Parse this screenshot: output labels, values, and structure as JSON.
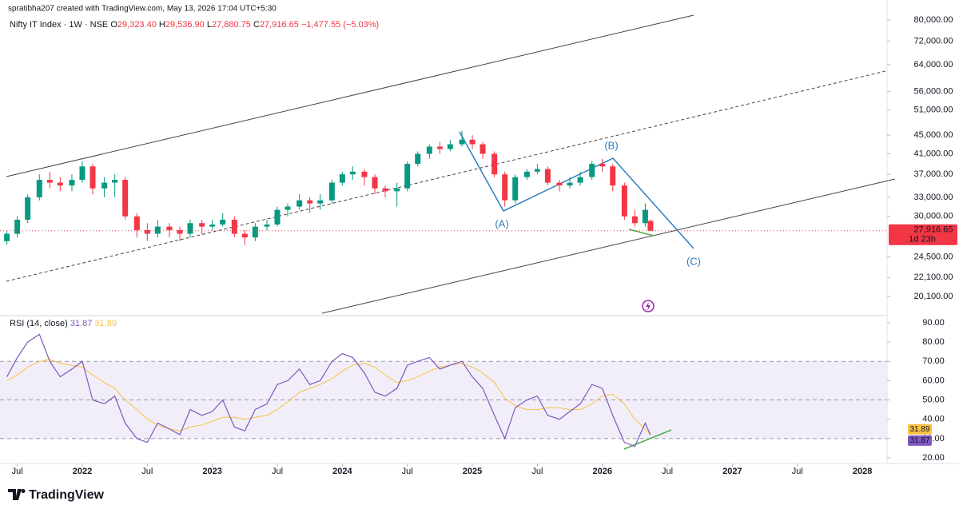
{
  "header": {
    "credit": "spratibha207 created with TradingView.com, May 13, 2026 17:04 UTC+5:30",
    "symbol": "Nifty IT Index · 1W · NSE",
    "ohlc": [
      {
        "prefix": "O",
        "label": "29,323.40"
      },
      {
        "prefix": "H",
        "label": "29,536.90"
      },
      {
        "prefix": "L",
        "label": "27,880.75"
      },
      {
        "prefix": "C",
        "label": "27,916.65"
      }
    ],
    "change": "−1,477.55 (−5.03%)"
  },
  "footer": {
    "brand": "TradingView"
  },
  "chart_data": [
    {
      "type": "candlestick",
      "log_scale": true,
      "grid": false,
      "up_color": "#089981",
      "down_color": "#f23645",
      "x": [
        2021.42,
        2021.5,
        2021.58,
        2021.67,
        2021.75,
        2021.83,
        2021.92,
        2022.0,
        2022.08,
        2022.17,
        2022.25,
        2022.33,
        2022.42,
        2022.5,
        2022.58,
        2022.67,
        2022.75,
        2022.83,
        2022.92,
        2023.0,
        2023.08,
        2023.17,
        2023.25,
        2023.33,
        2023.42,
        2023.5,
        2023.58,
        2023.67,
        2023.75,
        2023.83,
        2023.92,
        2024.0,
        2024.08,
        2024.17,
        2024.25,
        2024.33,
        2024.42,
        2024.5,
        2024.58,
        2024.67,
        2024.75,
        2024.83,
        2024.92,
        2025.0,
        2025.08,
        2025.17,
        2025.25,
        2025.33,
        2025.42,
        2025.5,
        2025.58,
        2025.67,
        2025.75,
        2025.83,
        2025.92,
        2026.0,
        2026.08,
        2026.17,
        2026.25,
        2026.33,
        2026.37
      ],
      "open": [
        26500,
        27500,
        29500,
        33000,
        36000,
        35500,
        35000,
        36000,
        38500,
        34500,
        35500,
        36000,
        30000,
        28000,
        27500,
        28500,
        28000,
        27500,
        29000,
        28500,
        28800,
        29500,
        27500,
        27000,
        28500,
        28800,
        31000,
        31500,
        32500,
        32000,
        32500,
        35500,
        37000,
        37500,
        36500,
        34500,
        34000,
        34500,
        39000,
        41000,
        42500,
        42000,
        43000,
        44000,
        43000,
        41000,
        37000,
        32500,
        36500,
        37500,
        38000,
        35500,
        35000,
        35500,
        36500,
        39000,
        38500,
        35000,
        30000,
        29000,
        29323.4
      ],
      "high": [
        28000,
        30000,
        33500,
        37000,
        37500,
        36500,
        37000,
        39500,
        39000,
        36500,
        37000,
        36500,
        30500,
        29000,
        29500,
        29000,
        28500,
        29500,
        29500,
        29500,
        30500,
        30000,
        28000,
        29000,
        29500,
        31500,
        32000,
        33500,
        33000,
        33500,
        36000,
        37500,
        38500,
        38000,
        37000,
        35000,
        35500,
        39500,
        41500,
        43000,
        43500,
        44000,
        46000,
        45000,
        43500,
        41500,
        37500,
        37000,
        38000,
        39000,
        38500,
        36000,
        36500,
        37500,
        39500,
        40000,
        39000,
        35500,
        31000,
        32000,
        29536.9
      ],
      "low": [
        26000,
        27000,
        29000,
        32500,
        34500,
        34000,
        34000,
        35500,
        33500,
        33000,
        33000,
        29500,
        27000,
        26500,
        27000,
        27000,
        26500,
        27000,
        27500,
        28000,
        28500,
        27000,
        26000,
        26500,
        28000,
        28500,
        30000,
        31000,
        30500,
        31000,
        32000,
        35000,
        36000,
        35000,
        33500,
        33000,
        31500,
        34000,
        38500,
        40000,
        41000,
        41500,
        42500,
        42000,
        40000,
        36500,
        31500,
        32000,
        36000,
        37000,
        35000,
        34000,
        34500,
        35000,
        36000,
        37500,
        34000,
        29500,
        28500,
        28500,
        27880.75
      ],
      "close": [
        27500,
        29500,
        33000,
        36000,
        35500,
        35000,
        36000,
        38500,
        34500,
        35500,
        36000,
        30000,
        28000,
        27500,
        28500,
        28000,
        27500,
        29000,
        28500,
        28800,
        29500,
        27500,
        27000,
        28500,
        28800,
        31000,
        31500,
        32500,
        32000,
        32500,
        35500,
        37000,
        37500,
        36500,
        34500,
        34000,
        34500,
        39000,
        41000,
        42500,
        42000,
        43000,
        44000,
        43000,
        41000,
        37000,
        32500,
        36500,
        37500,
        38000,
        35500,
        35000,
        35500,
        36500,
        39000,
        38500,
        35000,
        30000,
        29000,
        31000,
        27916.65
      ],
      "xlim": [
        2021.367,
        2028.19
      ],
      "ylim": [
        18270,
        88400
      ],
      "yticks": [
        {
          "value": 80000,
          "label": "80,000.00"
        },
        {
          "value": 72000,
          "label": "72,000.00"
        },
        {
          "value": 64000,
          "label": "64,000.00"
        },
        {
          "value": 56000,
          "label": "56,000.00"
        },
        {
          "value": 51000,
          "label": "51,000.00"
        },
        {
          "value": 45000,
          "label": "45,000.00"
        },
        {
          "value": 41000,
          "label": "41,000.00"
        },
        {
          "value": 37000,
          "label": "37,000.00"
        },
        {
          "value": 33000,
          "label": "33,000.00"
        },
        {
          "value": 30000,
          "label": "30,000.00"
        },
        {
          "value": 24500,
          "label": "24,500.00"
        },
        {
          "value": 22100,
          "label": "22,100.00"
        },
        {
          "value": 20100,
          "label": "20,100.00"
        }
      ],
      "last_price": {
        "value": 27916.65,
        "label": "27,916.65"
      },
      "countdown": "1d 23h",
      "annotations": [
        "(A)",
        "(B)",
        "(C)"
      ]
    },
    {
      "type": "line",
      "title": "RSI (14, close)",
      "grid": false,
      "dashed_levels": [
        30,
        50,
        70
      ],
      "x": [
        2021.42,
        2021.5,
        2021.58,
        2021.67,
        2021.75,
        2021.83,
        2021.92,
        2022.0,
        2022.08,
        2022.17,
        2022.25,
        2022.33,
        2022.42,
        2022.5,
        2022.58,
        2022.67,
        2022.75,
        2022.83,
        2022.92,
        2023.0,
        2023.08,
        2023.17,
        2023.25,
        2023.33,
        2023.42,
        2023.5,
        2023.58,
        2023.67,
        2023.75,
        2023.83,
        2023.92,
        2024.0,
        2024.08,
        2024.17,
        2024.25,
        2024.33,
        2024.42,
        2024.5,
        2024.58,
        2024.67,
        2024.75,
        2024.83,
        2024.92,
        2025.0,
        2025.08,
        2025.17,
        2025.25,
        2025.33,
        2025.42,
        2025.5,
        2025.58,
        2025.67,
        2025.75,
        2025.83,
        2025.92,
        2026.0,
        2026.08,
        2026.17,
        2026.25,
        2026.33,
        2026.37
      ],
      "series": [
        {
          "color": "#7e57c2",
          "last": 31.87,
          "values": [
            62,
            72,
            80,
            84,
            70,
            62,
            66,
            70,
            50,
            48,
            52,
            38,
            30,
            28,
            38,
            35,
            32,
            45,
            42,
            44,
            50,
            36,
            34,
            45,
            48,
            58,
            60,
            66,
            58,
            60,
            70,
            74,
            72,
            64,
            54,
            52,
            56,
            68,
            70,
            72,
            66,
            68,
            70,
            62,
            56,
            42,
            30,
            46,
            50,
            52,
            42,
            40,
            44,
            48,
            58,
            56,
            42,
            28,
            26,
            38,
            31.87
          ]
        },
        {
          "color": "#f7c244",
          "last": 31.89,
          "values": [
            60,
            63,
            67,
            70,
            71,
            69,
            68,
            67,
            63,
            59,
            56,
            50,
            45,
            40,
            37,
            35,
            34,
            36,
            37,
            39,
            41,
            41,
            40,
            41,
            42,
            45,
            49,
            54,
            56,
            58,
            61,
            65,
            68,
            69,
            67,
            63,
            59,
            60,
            62,
            65,
            67,
            68,
            69,
            67,
            64,
            59,
            51,
            47,
            45,
            45,
            46,
            46,
            45,
            45,
            48,
            52,
            53,
            48,
            40,
            35,
            31.89
          ]
        }
      ],
      "xlim": [
        2021.367,
        2028.19
      ],
      "ylim": [
        17.1,
        93.7
      ],
      "yticks": [
        {
          "value": 20,
          "label": "20.00"
        },
        {
          "value": 30,
          "label": "30.00"
        },
        {
          "value": 40,
          "label": "40.00"
        },
        {
          "value": 50,
          "label": "50.00"
        },
        {
          "value": 60,
          "label": "60.00"
        },
        {
          "value": 70,
          "label": "70.00"
        },
        {
          "value": 80,
          "label": "80.00"
        },
        {
          "value": 90,
          "label": "90.00"
        }
      ],
      "xticks": [
        {
          "value": 2021.5,
          "label": "Jul"
        },
        2022,
        {
          "value": 2022.5,
          "label": "Jul"
        },
        2023,
        {
          "value": 2023.5,
          "label": "Jul"
        },
        2024,
        {
          "value": 2024.5,
          "label": "Jul"
        },
        2025,
        {
          "value": 2025.5,
          "label": "Jul"
        },
        2026,
        {
          "value": 2026.5,
          "label": "Jul"
        },
        2027,
        {
          "value": 2027.5,
          "label": "Jul"
        },
        2028
      ]
    }
  ]
}
